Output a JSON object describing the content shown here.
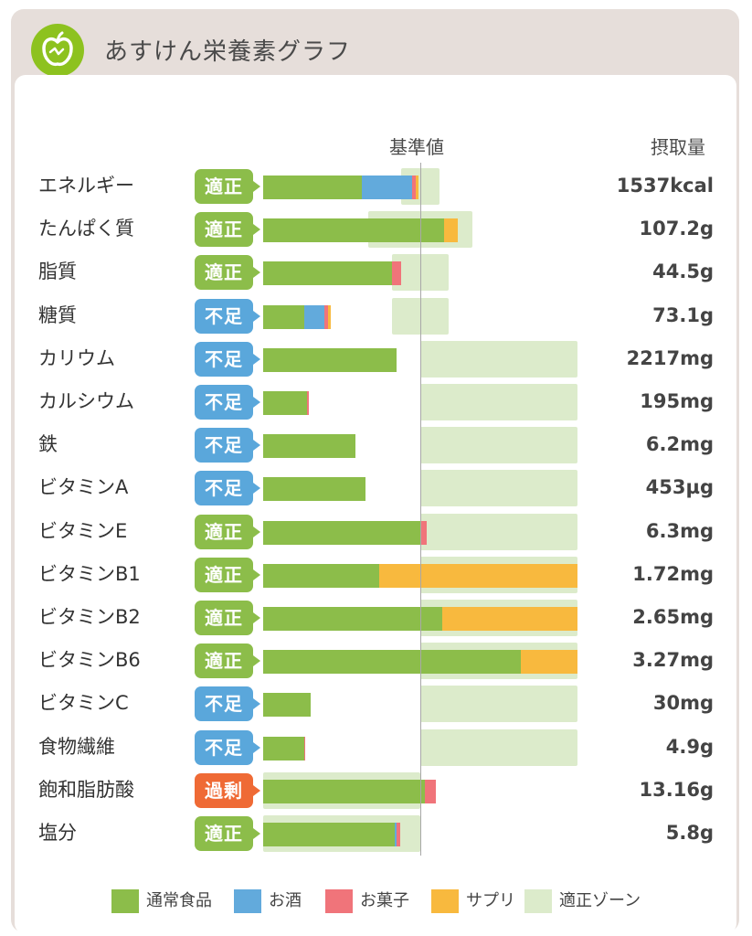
{
  "app": {
    "title": "あすけん栄養素グラフ",
    "icon": "apple-icon"
  },
  "colors": {
    "food": "#8cbd4a",
    "alcohol": "#62aadc",
    "sweets": "#f0747a",
    "supplement": "#f8b93e",
    "zone": "#dcebcb",
    "badge_ok": "#8cbd4a",
    "badge_low": "#5aa7db",
    "badge_over": "#ef6a35"
  },
  "chart_data": {
    "type": "bar",
    "column_headers": {
      "reference": "基準値",
      "intake": "摂取量"
    },
    "series": [
      {
        "key": "food",
        "name": "通常食品"
      },
      {
        "key": "alcohol",
        "name": "お酒"
      },
      {
        "key": "sweets",
        "name": "お菓子"
      },
      {
        "key": "supplement",
        "name": "サプリ"
      }
    ],
    "zone_label": "適正ゾーン",
    "reference_percent": 100,
    "unit_note": "bar values are percent of reference value",
    "rows": [
      {
        "name": "エネルギー",
        "status": "適正",
        "status_type": "ok",
        "intake": "1537kcal",
        "segments": {
          "food": 63,
          "alcohol": 32,
          "sweets": 2,
          "supplement": 2
        },
        "zone": [
          88,
          112
        ]
      },
      {
        "name": "たんぱく質",
        "status": "適正",
        "status_type": "ok",
        "intake": "107.2g",
        "segments": {
          "food": 115,
          "alcohol": 0,
          "sweets": 0,
          "supplement": 9
        },
        "zone": [
          67,
          133
        ]
      },
      {
        "name": "脂質",
        "status": "適正",
        "status_type": "ok",
        "intake": "44.5g",
        "segments": {
          "food": 82,
          "alcohol": 0,
          "sweets": 6,
          "supplement": 0
        },
        "zone": [
          82,
          118
        ]
      },
      {
        "name": "糖質",
        "status": "不足",
        "status_type": "low",
        "intake": "73.1g",
        "segments": {
          "food": 26,
          "alcohol": 13,
          "sweets": 2,
          "supplement": 2
        },
        "zone": [
          82,
          118
        ]
      },
      {
        "name": "カリウム",
        "status": "不足",
        "status_type": "low",
        "intake": "2217mg",
        "segments": {
          "food": 85,
          "alcohol": 0,
          "sweets": 0,
          "supplement": 0
        },
        "zone": [
          100,
          200
        ]
      },
      {
        "name": "カルシウム",
        "status": "不足",
        "status_type": "low",
        "intake": "195mg",
        "segments": {
          "food": 28,
          "alcohol": 0,
          "sweets": 1,
          "supplement": 0
        },
        "zone": [
          100,
          200
        ]
      },
      {
        "name": "鉄",
        "status": "不足",
        "status_type": "low",
        "intake": "6.2mg",
        "segments": {
          "food": 59,
          "alcohol": 0,
          "sweets": 0,
          "supplement": 0
        },
        "zone": [
          100,
          200
        ]
      },
      {
        "name": "ビタミンA",
        "status": "不足",
        "status_type": "low",
        "intake": "453µg",
        "segments": {
          "food": 65,
          "alcohol": 0,
          "sweets": 0,
          "supplement": 0
        },
        "zone": [
          100,
          200
        ]
      },
      {
        "name": "ビタミンE",
        "status": "適正",
        "status_type": "ok",
        "intake": "6.3mg",
        "segments": {
          "food": 100,
          "alcohol": 0,
          "sweets": 4,
          "supplement": 0
        },
        "zone": [
          100,
          200
        ]
      },
      {
        "name": "ビタミンB1",
        "status": "適正",
        "status_type": "ok",
        "intake": "1.72mg",
        "segments": {
          "food": 74,
          "alcohol": 0,
          "sweets": 0,
          "supplement": 126
        },
        "zone": [
          100,
          200
        ]
      },
      {
        "name": "ビタミンB2",
        "status": "適正",
        "status_type": "ok",
        "intake": "2.65mg",
        "segments": {
          "food": 114,
          "alcohol": 0,
          "sweets": 0,
          "supplement": 86
        },
        "zone": [
          100,
          200
        ]
      },
      {
        "name": "ビタミンB6",
        "status": "適正",
        "status_type": "ok",
        "intake": "3.27mg",
        "segments": {
          "food": 164,
          "alcohol": 0,
          "sweets": 0,
          "supplement": 36
        },
        "zone": [
          100,
          200
        ]
      },
      {
        "name": "ビタミンC",
        "status": "不足",
        "status_type": "low",
        "intake": "30mg",
        "segments": {
          "food": 30,
          "alcohol": 0,
          "sweets": 0,
          "supplement": 0
        },
        "zone": [
          100,
          200
        ]
      },
      {
        "name": "食物繊維",
        "status": "不足",
        "status_type": "low",
        "intake": "4.9g",
        "segments": {
          "food": 26,
          "alcohol": 0,
          "sweets": 1,
          "supplement": 0
        },
        "zone": [
          100,
          200
        ]
      },
      {
        "name": "飽和脂肪酸",
        "status": "過剰",
        "status_type": "over",
        "intake": "13.16g",
        "segments": {
          "food": 103,
          "alcohol": 0,
          "sweets": 7,
          "supplement": 0
        },
        "zone": [
          0,
          100
        ]
      },
      {
        "name": "塩分",
        "status": "適正",
        "status_type": "ok",
        "intake": "5.8g",
        "segments": {
          "food": 84,
          "alcohol": 1,
          "sweets": 2,
          "supplement": 0
        },
        "zone": [
          0,
          100
        ]
      }
    ]
  }
}
